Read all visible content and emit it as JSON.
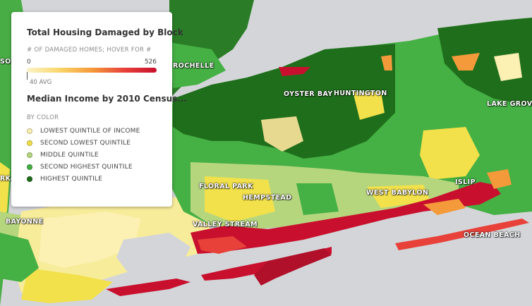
{
  "legend": {
    "title": "Total Housing Damaged by Block",
    "subtitle": "# OF DAMAGED HOMES; HOVER FOR #",
    "min": "0",
    "max": "526",
    "avg_label": "40 AVG",
    "title2": "Median Income by 2010 Census...",
    "subtitle2": "BY COLOR",
    "items": [
      {
        "label": "LOWEST QUINTILE OF INCOME",
        "color": "#fcf0b2"
      },
      {
        "label": "SECOND LOWEST QUINTILE",
        "color": "#f2e14a"
      },
      {
        "label": "MIDDLE QUINTILE",
        "color": "#b6d67e"
      },
      {
        "label": "SECOND HIGHEST QUINTILE",
        "color": "#45b044"
      },
      {
        "label": "HIGHEST QUINTILE",
        "color": "#1f6e1b"
      }
    ]
  },
  "places": {
    "rochelle": "ROCHELLE",
    "oyster_bay": "OYSTER BAY",
    "huntington": "HUNTINGTON",
    "lake_grove": "LAKE GROVE",
    "floral_park": "FLORAL PARK",
    "hempstead": "HEMPSTEAD",
    "west_babylon": "WEST BABYLON",
    "islip": "ISLIP",
    "valley_stream": "VALLEY STREAM",
    "bayonne": "BAYONNE",
    "ocean_beach": "OCEAN BEACH",
    "so": "SO",
    "rk": "RK"
  },
  "colors": {
    "water": "#d4d5d9",
    "damage_low": "#f59a3a",
    "damage_high": "#c8102e"
  }
}
